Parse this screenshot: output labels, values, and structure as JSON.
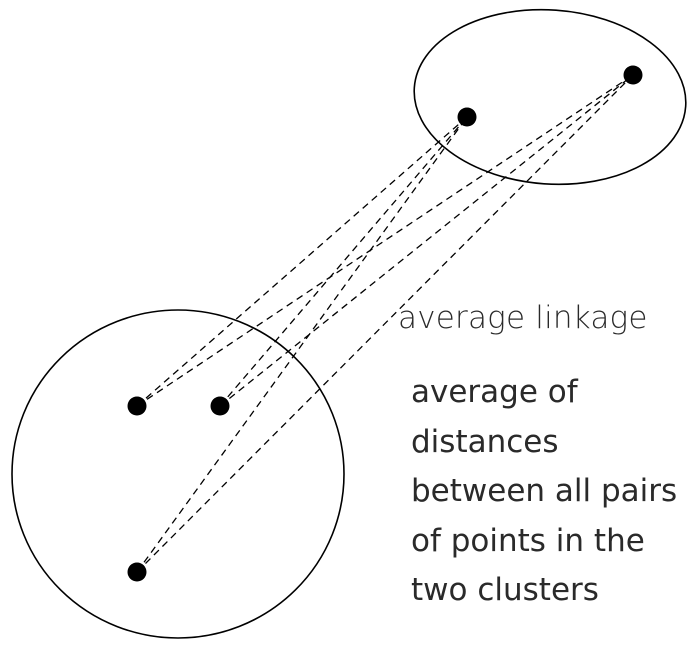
{
  "diagram": {
    "title": "average linkage",
    "description_lines": [
      "average of",
      "distances",
      "between all pairs",
      "of points in the",
      "two clusters"
    ],
    "colors": {
      "ink": "#000000",
      "text": "#2a2a2a",
      "background": "#ffffff"
    },
    "cluster_a_point_count": 3,
    "cluster_b_point_count": 2,
    "connections": "all pairs between clusters (dashed)"
  }
}
